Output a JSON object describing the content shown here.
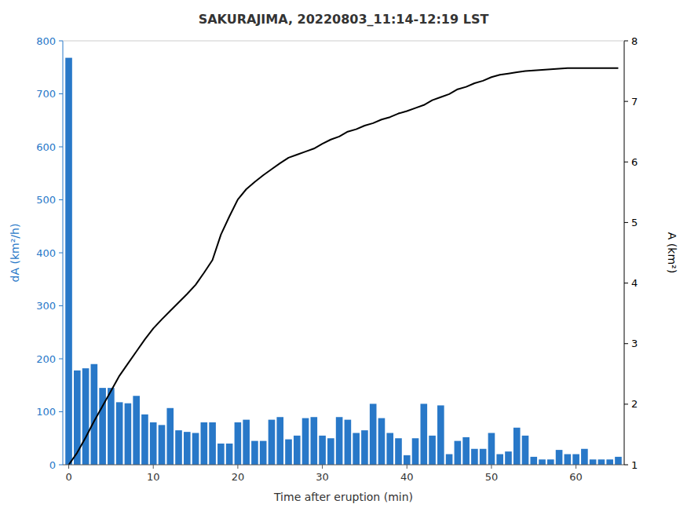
{
  "chart_data": {
    "type": "bar",
    "title": "SAKURAJIMA, 20220803_11:14-12:19 LST",
    "xlabel": "Time after eruption (min)",
    "ylabel": "dA (km²/h)",
    "y2label": "A (km²)",
    "x": [
      0,
      1,
      2,
      3,
      4,
      5,
      6,
      7,
      8,
      9,
      10,
      11,
      12,
      13,
      14,
      15,
      16,
      17,
      18,
      19,
      20,
      21,
      22,
      23,
      24,
      25,
      26,
      27,
      28,
      29,
      30,
      31,
      32,
      33,
      34,
      35,
      36,
      37,
      38,
      39,
      40,
      41,
      42,
      43,
      44,
      45,
      46,
      47,
      48,
      49,
      50,
      51,
      52,
      53,
      54,
      55,
      56,
      57,
      58,
      59,
      60,
      61,
      62,
      63,
      64,
      65
    ],
    "series": [
      {
        "type": "bar",
        "color": "#2878c8",
        "values": [
          768,
          178,
          182,
          190,
          145,
          145,
          118,
          116,
          130,
          95,
          80,
          75,
          107,
          65,
          62,
          60,
          80,
          80,
          40,
          40,
          80,
          85,
          45,
          45,
          85,
          90,
          48,
          55,
          88,
          90,
          55,
          50,
          90,
          85,
          60,
          65,
          115,
          88,
          60,
          50,
          18,
          50,
          115,
          55,
          112,
          20,
          45,
          52,
          30,
          30,
          60,
          20,
          25,
          70,
          55,
          15,
          10,
          10,
          28,
          20,
          20,
          30,
          10,
          10,
          10,
          15
        ]
      },
      {
        "type": "line",
        "color": "#000000",
        "axis": "y2",
        "values": [
          1.0,
          1.2,
          1.45,
          1.72,
          1.97,
          2.22,
          2.47,
          2.67,
          2.87,
          3.07,
          3.25,
          3.4,
          3.54,
          3.68,
          3.82,
          3.97,
          4.17,
          4.38,
          4.8,
          5.1,
          5.38,
          5.55,
          5.67,
          5.78,
          5.88,
          5.98,
          6.07,
          6.12,
          6.17,
          6.22,
          6.3,
          6.37,
          6.42,
          6.5,
          6.54,
          6.6,
          6.64,
          6.7,
          6.74,
          6.8,
          6.84,
          6.89,
          6.94,
          7.02,
          7.07,
          7.12,
          7.2,
          7.24,
          7.3,
          7.34,
          7.4,
          7.44,
          7.46,
          7.48,
          7.5,
          7.51,
          7.52,
          7.53,
          7.54,
          7.55,
          7.55,
          7.55,
          7.55,
          7.55,
          7.55,
          7.55
        ]
      }
    ],
    "xlim": [
      -0.7,
      65.7
    ],
    "xticks": [
      0,
      10,
      20,
      30,
      40,
      50,
      60
    ],
    "ylim": [
      0,
      800
    ],
    "yticks": [
      0,
      100,
      200,
      300,
      400,
      500,
      600,
      700,
      800
    ],
    "y2lim": [
      1,
      8
    ],
    "y2ticks": [
      1,
      2,
      3,
      4,
      5,
      6,
      7,
      8
    ],
    "grid": false
  }
}
